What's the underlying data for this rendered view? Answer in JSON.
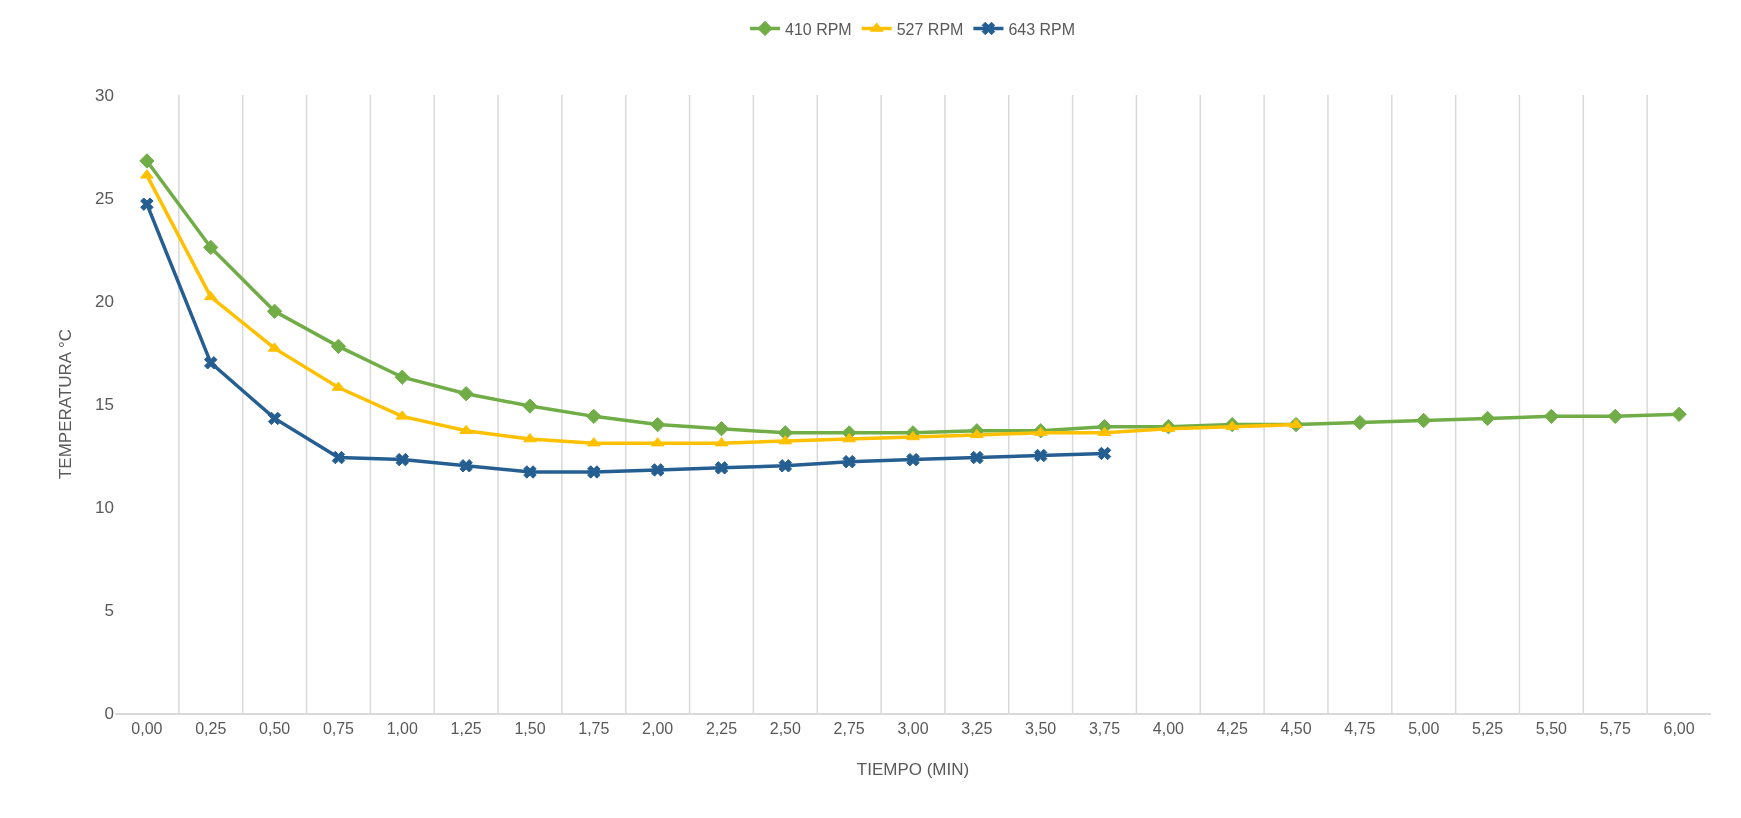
{
  "chart_data": {
    "type": "line",
    "xlabel": "TIEMPO (MIN)",
    "ylabel": "TEMPERATURA °C",
    "categories": [
      "0,00",
      "0,25",
      "0,50",
      "0,75",
      "1,00",
      "1,25",
      "1,50",
      "1,75",
      "2,00",
      "2,25",
      "2,50",
      "2,75",
      "3,00",
      "3,25",
      "3,50",
      "3,75",
      "4,00",
      "4,25",
      "4,50",
      "4,75",
      "5,00",
      "5,25",
      "5,50",
      "5,75",
      "6,00"
    ],
    "series": [
      {
        "name": "410 RPM",
        "color": "#70ad47",
        "marker": "diamond",
        "values": [
          26.8,
          22.6,
          19.5,
          17.8,
          16.3,
          15.5,
          14.9,
          14.4,
          14.0,
          13.8,
          13.6,
          13.6,
          13.6,
          13.7,
          13.7,
          13.9,
          13.9,
          14.0,
          14.0,
          14.1,
          14.2,
          14.3,
          14.4,
          14.4,
          14.5
        ]
      },
      {
        "name": "527 RPM",
        "color": "#ffc000",
        "marker": "triangle",
        "values": [
          26.1,
          20.2,
          17.7,
          15.8,
          14.4,
          13.7,
          13.3,
          13.1,
          13.1,
          13.1,
          13.2,
          13.3,
          13.4,
          13.5,
          13.6,
          13.6,
          13.8,
          13.9,
          14.0,
          null,
          null,
          null,
          null,
          null,
          null
        ]
      },
      {
        "name": "643 RPM",
        "color": "#255e91",
        "marker": "cross",
        "values": [
          24.7,
          17.0,
          14.3,
          12.4,
          12.3,
          12.0,
          11.7,
          11.7,
          11.8,
          11.9,
          12.0,
          12.2,
          12.3,
          12.4,
          12.5,
          12.6,
          null,
          null,
          null,
          null,
          null,
          null,
          null,
          null,
          null
        ]
      }
    ],
    "ylim": [
      0,
      30
    ],
    "yticks": [
      0,
      5,
      10,
      15,
      20,
      25,
      30
    ],
    "grid": "x",
    "legend": "top",
    "line_style": "solid"
  }
}
